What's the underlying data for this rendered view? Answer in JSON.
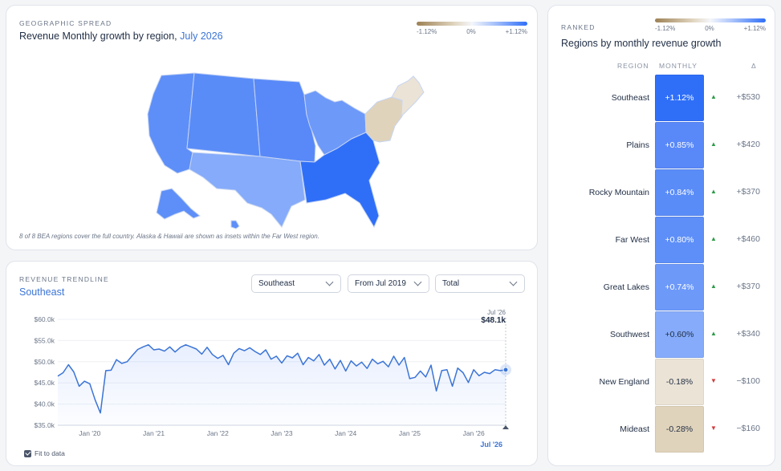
{
  "map_panel": {
    "eyebrow": "GEOGRAPHIC SPREAD",
    "title_prefix": "Revenue Monthly growth by region,",
    "title_period": "July 2026",
    "legend": {
      "min": "-1.12%",
      "mid": "0%",
      "max": "+1.12%"
    },
    "note": "8 of 8 BEA regions cover the full country. Alaska & Hawaii are shown as insets within the Far West region.",
    "regions": [
      {
        "name": "Far West",
        "color": "#5e8ff8"
      },
      {
        "name": "Rocky Mountain",
        "color": "#5a8cf8"
      },
      {
        "name": "Plains",
        "color": "#5989f8"
      },
      {
        "name": "Great Lakes",
        "color": "#6d99f9"
      },
      {
        "name": "Southwest",
        "color": "#85abfa"
      },
      {
        "name": "Southeast",
        "color": "#2f6ff8"
      },
      {
        "name": "Mideast",
        "color": "#e0d3bb"
      },
      {
        "name": "New England",
        "color": "#ebe3d5"
      }
    ]
  },
  "trend_panel": {
    "eyebrow": "REVENUE TRENDLINE",
    "title": "Southeast",
    "filters": {
      "region": "Southeast",
      "range": "From Jul 2019",
      "measure": "Total"
    },
    "fit_label": "Fit to data",
    "tooltip": {
      "date": "Jul '26",
      "value": "$48.1k"
    },
    "current_label": "Jul '26"
  },
  "ranked_panel": {
    "eyebrow": "RANKED",
    "title": "Regions by monthly revenue growth",
    "legend": {
      "min": "-1.12%",
      "mid": "0%",
      "max": "+1.12%"
    },
    "columns": {
      "region": "REGION",
      "monthly": "MONTHLY",
      "delta": "Δ"
    },
    "rows": [
      {
        "region": "Southeast",
        "monthly": "+1.12%",
        "delta": "+$530",
        "direction": "up",
        "color": "#2f6ff8",
        "text_color": "#ffffff"
      },
      {
        "region": "Plains",
        "monthly": "+0.85%",
        "delta": "+$420",
        "direction": "up",
        "color": "#5989f8",
        "text_color": "#ffffff"
      },
      {
        "region": "Rocky Mountain",
        "monthly": "+0.84%",
        "delta": "+$370",
        "direction": "up",
        "color": "#5a8cf8",
        "text_color": "#ffffff"
      },
      {
        "region": "Far West",
        "monthly": "+0.80%",
        "delta": "+$460",
        "direction": "up",
        "color": "#5e8ff8",
        "text_color": "#ffffff"
      },
      {
        "region": "Great Lakes",
        "monthly": "+0.74%",
        "delta": "+$370",
        "direction": "up",
        "color": "#6d99f9",
        "text_color": "#ffffff"
      },
      {
        "region": "Southwest",
        "monthly": "+0.60%",
        "delta": "+$340",
        "direction": "up",
        "color": "#85abfa",
        "text_color": "#1f2d44"
      },
      {
        "region": "New England",
        "monthly": "-0.18%",
        "delta": "−$100",
        "direction": "down",
        "color": "#ebe3d5",
        "text_color": "#1f2d44"
      },
      {
        "region": "Mideast",
        "monthly": "-0.28%",
        "delta": "−$160",
        "direction": "down",
        "color": "#e0d3bb",
        "text_color": "#1f2d44"
      }
    ],
    "up_color": "#2e9b4a",
    "down_color": "#d23c3c"
  },
  "chart_data": {
    "type": "line",
    "title": "",
    "xlabel": "",
    "ylabel": "",
    "ylim": [
      35,
      60
    ],
    "yticks": [
      "$35.0k",
      "$40.0k",
      "$45.0k",
      "$50.0k",
      "$55.0k",
      "$60.0k"
    ],
    "ytick_values": [
      35,
      40,
      45,
      50,
      55,
      60
    ],
    "xticks": [
      "Jan '20",
      "Jan '21",
      "Jan '22",
      "Jan '23",
      "Jan '24",
      "Jan '25",
      "Jan '26"
    ],
    "xtick_months": [
      6,
      18,
      30,
      42,
      54,
      66,
      78
    ],
    "series": [
      {
        "color": "#3b74d6",
        "months": [
          0,
          1,
          2,
          3,
          4,
          5,
          6,
          7,
          8,
          9,
          10,
          11,
          12,
          13,
          14,
          15,
          16,
          17,
          18,
          19,
          20,
          21,
          22,
          23,
          24,
          25,
          26,
          27,
          28,
          29,
          30,
          31,
          32,
          33,
          34,
          35,
          36,
          37,
          38,
          39,
          40,
          41,
          42,
          43,
          44,
          45,
          46,
          47,
          48,
          49,
          50,
          51,
          52,
          53,
          54,
          55,
          56,
          57,
          58,
          59,
          60,
          61,
          62,
          63,
          64,
          65,
          66,
          67,
          68,
          69,
          70,
          71,
          72,
          73,
          74,
          75,
          76,
          77,
          78,
          79,
          80,
          81,
          82,
          83,
          84
        ],
        "values": [
          46.6,
          47.4,
          49.3,
          47.6,
          44.2,
          45.4,
          44.8,
          41.0,
          37.9,
          47.9,
          48.0,
          50.5,
          49.6,
          50.0,
          51.5,
          52.9,
          53.5,
          54.0,
          52.8,
          53.0,
          52.5,
          53.5,
          52.3,
          53.4,
          54.0,
          53.5,
          53.0,
          51.8,
          53.4,
          51.7,
          50.8,
          51.5,
          49.3,
          52.0,
          53.1,
          52.6,
          53.3,
          52.4,
          51.7,
          52.8,
          50.6,
          51.3,
          49.7,
          51.4,
          50.9,
          52.0,
          49.3,
          51.0,
          50.2,
          51.7,
          49.2,
          50.6,
          48.3,
          50.3,
          47.8,
          50.2,
          49.0,
          49.9,
          48.4,
          50.6,
          49.5,
          50.1,
          48.8,
          51.3,
          49.2,
          51.0,
          46.0,
          46.3,
          47.8,
          46.4,
          49.2,
          43.1,
          47.9,
          48.1,
          44.2,
          48.5,
          47.4,
          45.1,
          48.1,
          46.7,
          47.5,
          47.2,
          48.1,
          47.9,
          48.1
        ]
      }
    ]
  }
}
